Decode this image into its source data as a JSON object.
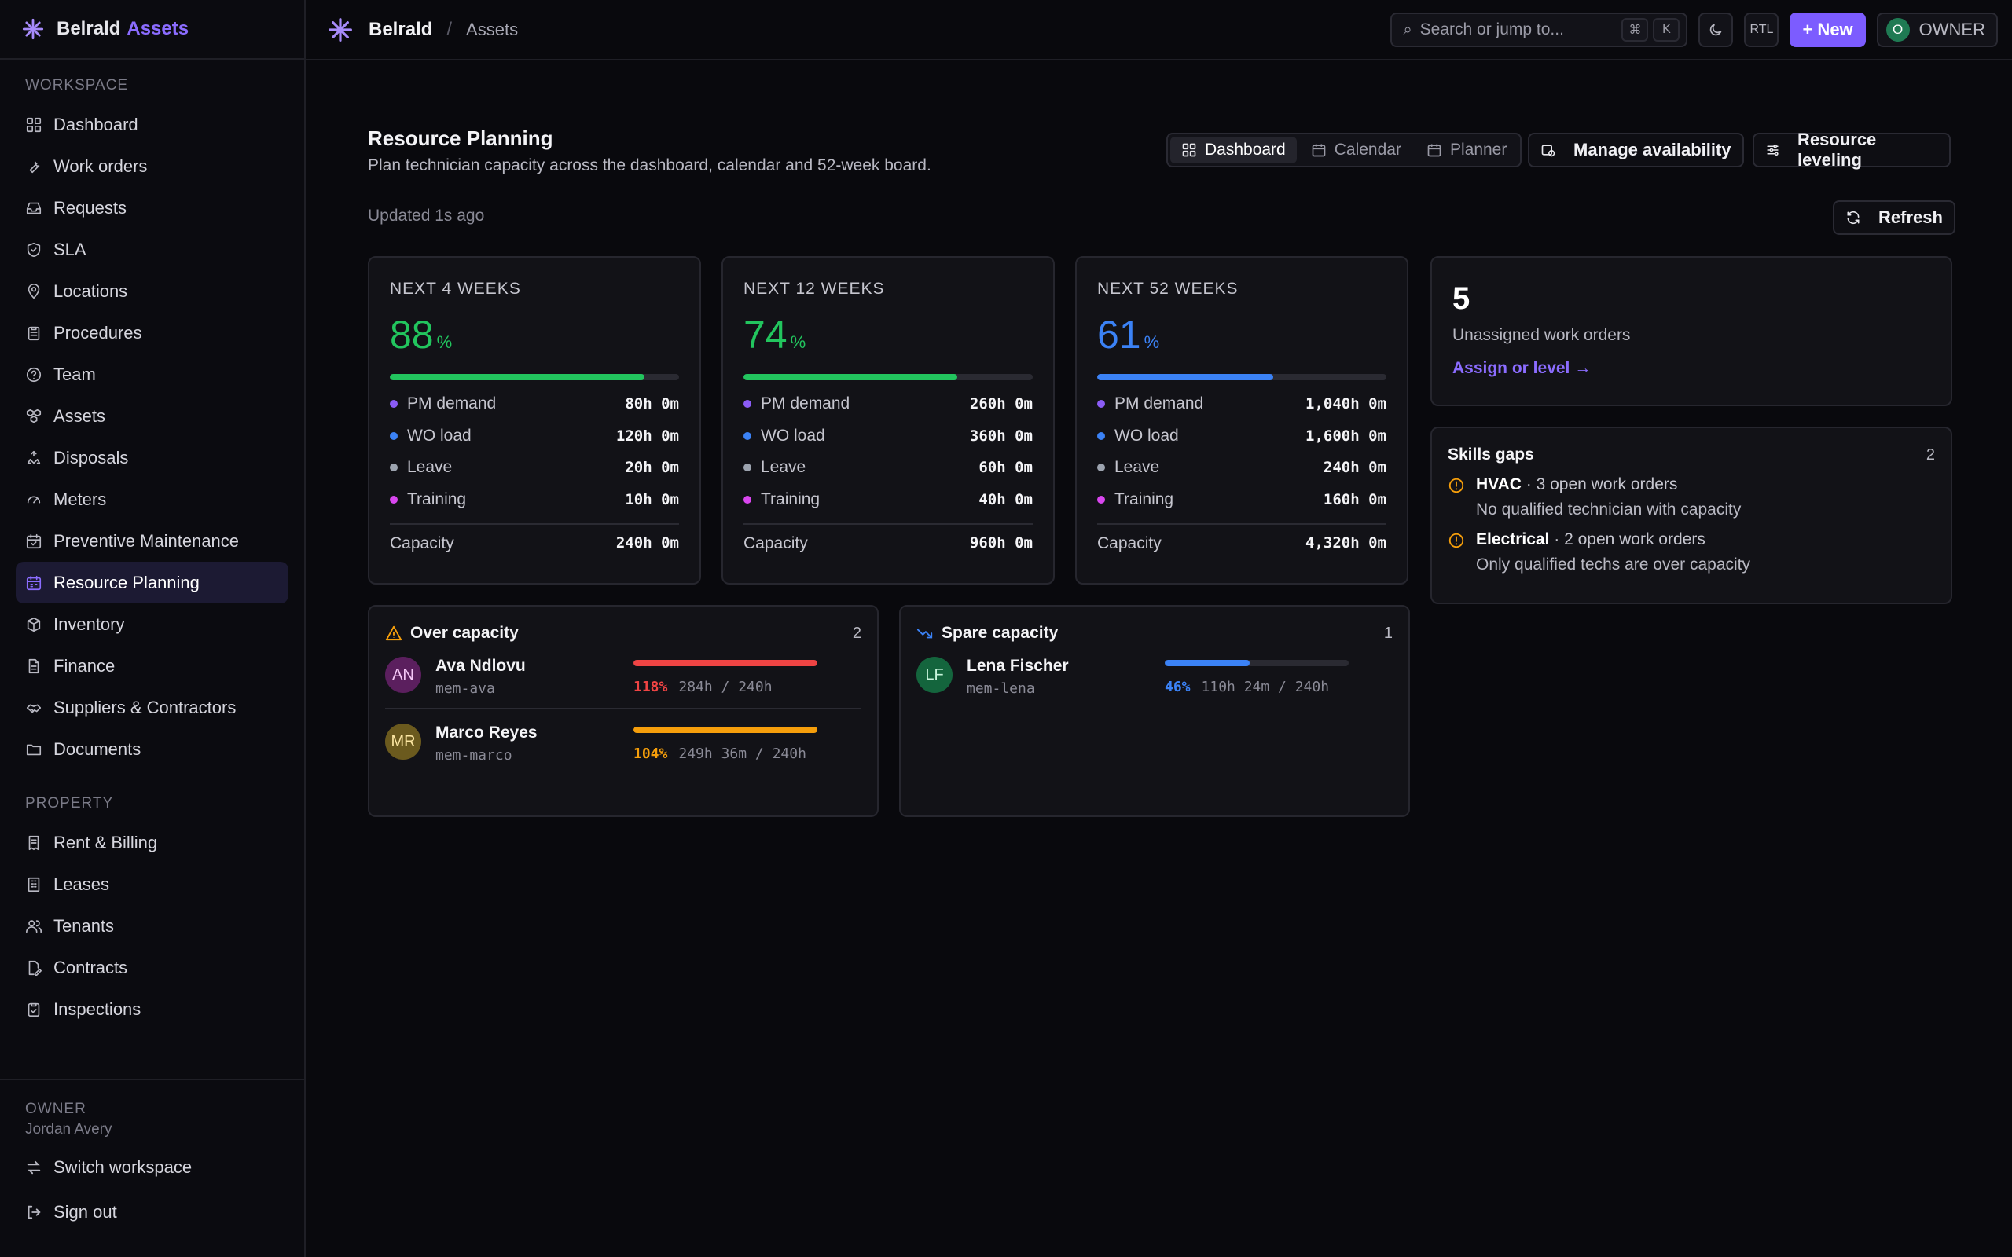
{
  "brand": {
    "name": "Belrald",
    "accent": "Assets"
  },
  "sidebar": {
    "workspace_label": "WORKSPACE",
    "workspace_items": [
      {
        "label": "Dashboard",
        "icon": "grid-icon"
      },
      {
        "label": "Work orders",
        "icon": "wrench-icon"
      },
      {
        "label": "Requests",
        "icon": "inbox-icon"
      },
      {
        "label": "SLA",
        "icon": "shield-icon"
      },
      {
        "label": "Locations",
        "icon": "pin-icon"
      },
      {
        "label": "Procedures",
        "icon": "clipboard-icon"
      },
      {
        "label": "Team",
        "icon": "help-circle-icon"
      },
      {
        "label": "Assets",
        "icon": "boxes-icon"
      },
      {
        "label": "Disposals",
        "icon": "recycle-icon"
      },
      {
        "label": "Meters",
        "icon": "gauge-icon"
      },
      {
        "label": "Preventive Maintenance",
        "icon": "calendar-check-icon"
      },
      {
        "label": "Resource Planning",
        "icon": "calendar-icon",
        "active": true
      },
      {
        "label": "Inventory",
        "icon": "package-icon"
      },
      {
        "label": "Finance",
        "icon": "file-icon"
      },
      {
        "label": "Suppliers & Contractors",
        "icon": "handshake-icon"
      },
      {
        "label": "Documents",
        "icon": "folder-icon"
      }
    ],
    "property_label": "PROPERTY",
    "property_items": [
      {
        "label": "Rent & Billing",
        "icon": "receipt-icon"
      },
      {
        "label": "Leases",
        "icon": "building-icon"
      },
      {
        "label": "Tenants",
        "icon": "users-icon"
      },
      {
        "label": "Contracts",
        "icon": "file-signature-icon"
      },
      {
        "label": "Inspections",
        "icon": "clipboard-check-icon"
      }
    ],
    "footer": {
      "role": "OWNER",
      "user": "Jordan Avery",
      "switch_label": "Switch workspace",
      "signout_label": "Sign out"
    }
  },
  "topbar": {
    "org": "Belrald",
    "separator": "/",
    "page": "Assets",
    "search_placeholder": "Search or jump to...",
    "kbd": [
      "⌘",
      "K"
    ],
    "theme_icon": "moon-icon",
    "rtl_label": "RTL",
    "new_label": "+ New",
    "owner_initial": "O",
    "owner_label": "OWNER"
  },
  "page": {
    "title": "Resource Planning",
    "subtitle": "Plan technician capacity across the dashboard, calendar and 52-week board.",
    "updated": "Updated 1s ago",
    "tabs": [
      {
        "label": "Dashboard",
        "icon": "layout-icon",
        "active": true
      },
      {
        "label": "Calendar",
        "icon": "calendar-icon"
      },
      {
        "label": "Planner",
        "icon": "calendar-icon"
      }
    ],
    "manage_label": "Manage availability",
    "leveling_label": "Resource leveling",
    "refresh_label": "Refresh"
  },
  "capacity_cards": [
    {
      "label": "NEXT 4 WEEKS",
      "pct": "88",
      "pct_value": 0.88,
      "color": "#22c55e",
      "rows": [
        {
          "label": "PM demand",
          "value": "80h 0m",
          "color": "#8b5cf6"
        },
        {
          "label": "WO load",
          "value": "120h 0m",
          "color": "#3b82f6"
        },
        {
          "label": "Leave",
          "value": "20h 0m",
          "color": "#9ca3af"
        },
        {
          "label": "Training",
          "value": "10h 0m",
          "color": "#d946ef"
        }
      ],
      "capacity_label": "Capacity",
      "capacity": "240h 0m"
    },
    {
      "label": "NEXT 12 WEEKS",
      "pct": "74",
      "pct_value": 0.74,
      "color": "#22c55e",
      "rows": [
        {
          "label": "PM demand",
          "value": "260h 0m",
          "color": "#8b5cf6"
        },
        {
          "label": "WO load",
          "value": "360h 0m",
          "color": "#3b82f6"
        },
        {
          "label": "Leave",
          "value": "60h 0m",
          "color": "#9ca3af"
        },
        {
          "label": "Training",
          "value": "40h 0m",
          "color": "#d946ef"
        }
      ],
      "capacity_label": "Capacity",
      "capacity": "960h 0m"
    },
    {
      "label": "NEXT 52 WEEKS",
      "pct": "61",
      "pct_value": 0.61,
      "color": "#3b82f6",
      "rows": [
        {
          "label": "PM demand",
          "value": "1,040h 0m",
          "color": "#8b5cf6"
        },
        {
          "label": "WO load",
          "value": "1,600h 0m",
          "color": "#3b82f6"
        },
        {
          "label": "Leave",
          "value": "240h 0m",
          "color": "#9ca3af"
        },
        {
          "label": "Training",
          "value": "160h 0m",
          "color": "#d946ef"
        }
      ],
      "capacity_label": "Capacity",
      "capacity": "4,320h 0m"
    }
  ],
  "unassigned": {
    "count": "5",
    "label": "Unassigned work orders",
    "link": "Assign or level →"
  },
  "skills_gaps": {
    "title": "Skills gaps",
    "count": "2",
    "items": [
      {
        "skill": "HVAC",
        "detail": " · 3 open work orders",
        "desc": "No qualified technician with capacity"
      },
      {
        "skill": "Electrical",
        "detail": " · 2 open work orders",
        "desc": "Only qualified techs are over capacity"
      }
    ]
  },
  "over_capacity": {
    "title": "Over capacity",
    "count": "2",
    "people": [
      {
        "initials": "AN",
        "name": "Ava Ndlovu",
        "handle": "mem-ava",
        "pct": "118%",
        "load": "284h / 240h",
        "fill": 1.0,
        "color": "#ef4444",
        "avatar_bg": "#5b1f5e",
        "avatar_fg": "#f5c6f7"
      },
      {
        "initials": "MR",
        "name": "Marco Reyes",
        "handle": "mem-marco",
        "pct": "104%",
        "load": "249h 36m / 240h",
        "fill": 1.0,
        "color": "#f59e0b",
        "avatar_bg": "#6b5a1e",
        "avatar_fg": "#fde7a3"
      }
    ]
  },
  "spare_capacity": {
    "title": "Spare capacity",
    "count": "1",
    "people": [
      {
        "initials": "LF",
        "name": "Lena Fischer",
        "handle": "mem-lena",
        "pct": "46%",
        "load": "110h 24m / 240h",
        "fill": 0.46,
        "color": "#3b82f6",
        "avatar_bg": "#14653d",
        "avatar_fg": "#c8f5dc"
      }
    ]
  }
}
